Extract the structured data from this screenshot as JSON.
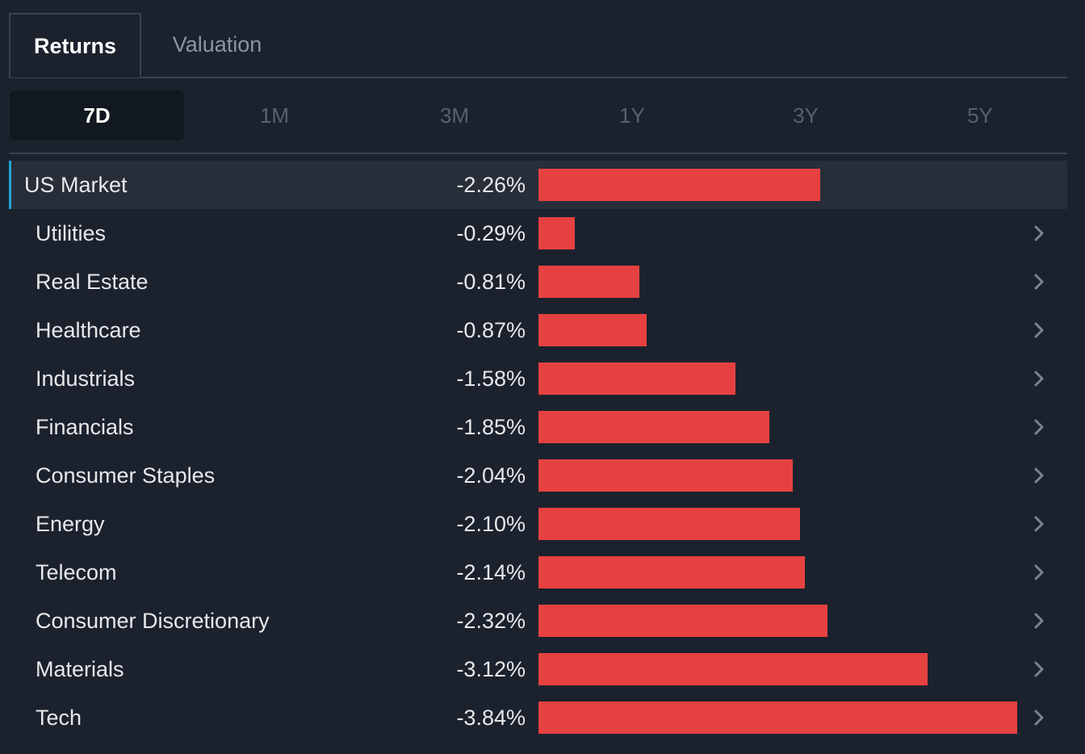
{
  "tabs": {
    "active": "Returns",
    "inactive": "Valuation"
  },
  "periods": [
    "7D",
    "1M",
    "3M",
    "1Y",
    "3Y",
    "5Y"
  ],
  "selected_period": "7D",
  "colors": {
    "accent": "#1ea6d6",
    "negative_bar": "#e64141",
    "background": "#1b222d"
  },
  "rows": [
    {
      "name": "US Market",
      "value_text": "-2.26%",
      "value": -2.26,
      "is_market": true
    },
    {
      "name": "Utilities",
      "value_text": "-0.29%",
      "value": -0.29
    },
    {
      "name": "Real Estate",
      "value_text": "-0.81%",
      "value": -0.81
    },
    {
      "name": "Healthcare",
      "value_text": "-0.87%",
      "value": -0.87
    },
    {
      "name": "Industrials",
      "value_text": "-1.58%",
      "value": -1.58
    },
    {
      "name": "Financials",
      "value_text": "-1.85%",
      "value": -1.85
    },
    {
      "name": "Consumer Staples",
      "value_text": "-2.04%",
      "value": -2.04
    },
    {
      "name": "Energy",
      "value_text": "-2.10%",
      "value": -2.1
    },
    {
      "name": "Telecom",
      "value_text": "-2.14%",
      "value": -2.14
    },
    {
      "name": "Consumer Discretionary",
      "value_text": "-2.32%",
      "value": -2.32
    },
    {
      "name": "Materials",
      "value_text": "-3.12%",
      "value": -3.12
    },
    {
      "name": "Tech",
      "value_text": "-3.84%",
      "value": -3.84
    }
  ],
  "row_icon": "chevron-right-icon"
}
